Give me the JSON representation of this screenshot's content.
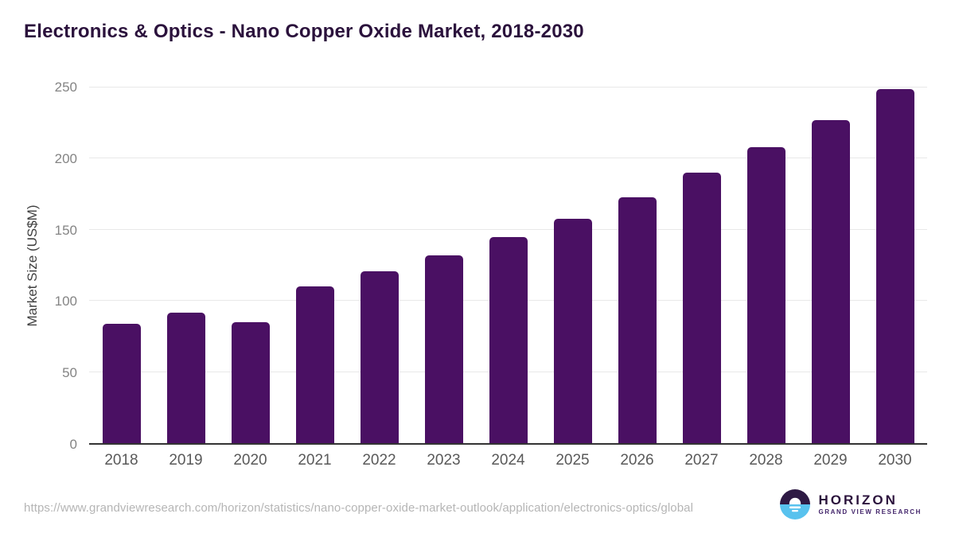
{
  "header": {
    "title": "Electronics & Optics - Nano Copper Oxide Market, 2018-2030"
  },
  "chart_data": {
    "type": "bar",
    "title": "Electronics & Optics - Nano Copper Oxide Market, 2018-2030",
    "categories": [
      "2018",
      "2019",
      "2020",
      "2021",
      "2022",
      "2023",
      "2024",
      "2025",
      "2026",
      "2027",
      "2028",
      "2029",
      "2030"
    ],
    "values": [
      84,
      92,
      85,
      110,
      121,
      132,
      145,
      158,
      173,
      190,
      208,
      227,
      249
    ],
    "xlabel": "",
    "ylabel": "Market Size (US$M)",
    "ylim": [
      0,
      250
    ],
    "yticks": [
      0,
      50,
      100,
      150,
      200,
      250
    ],
    "grid": "horizontal",
    "legend": "none",
    "bar_color": "#4a1063"
  },
  "footer": {
    "source_url": "https://www.grandviewresearch.com/horizon/statistics/nano-copper-oxide-market-outlook/application/electronics-optics/global",
    "logo": {
      "brand": "HORIZON",
      "tagline": "GRAND VIEW RESEARCH"
    }
  },
  "colors": {
    "title": "#2b123c",
    "bar": "#4a1063",
    "axis_line": "#333333",
    "gridline": "#e8e8e8",
    "y_tick_label": "#848484",
    "x_label": "#595959",
    "y_axis_title": "#3f3f3f",
    "url": "#b5b5b5",
    "logo_dark_half": "#2e1a44",
    "logo_blue_half": "#58c2ee"
  }
}
